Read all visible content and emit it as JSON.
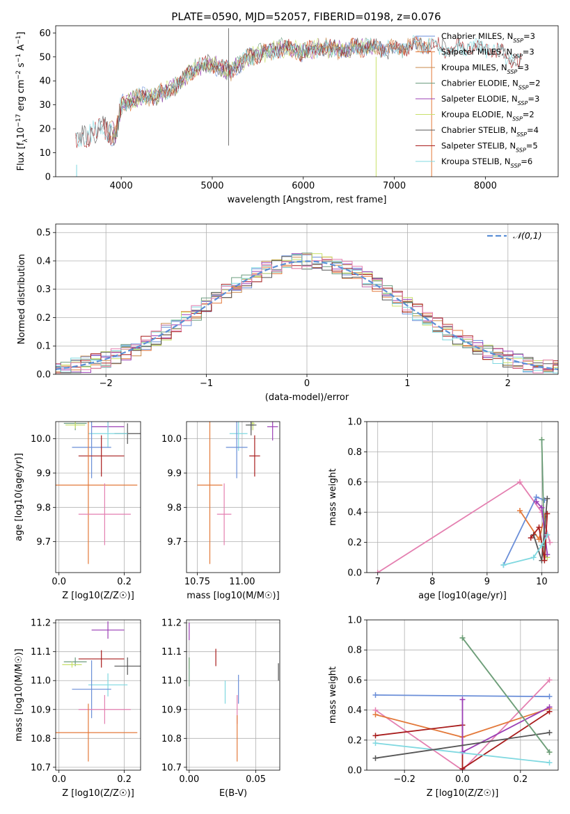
{
  "figure": {
    "title": "PLATE=0590, MJD=52057, FIBERID=0198, z=0.076"
  },
  "chart_data": [
    {
      "id": "spectrum",
      "type": "line",
      "xlabel": "wavelength [Angstrom, rest frame]",
      "ylabel": "Flux [f_λ10^-17 erg cm^-2 s^-1 A^-1]",
      "xlim": [
        3280,
        8800
      ],
      "ylim": [
        0,
        63
      ],
      "xticks": [
        4000,
        5000,
        6000,
        7000,
        8000
      ],
      "yticks": [
        0,
        10,
        20,
        30,
        40,
        50,
        60
      ],
      "grid": false,
      "legend": "upper right",
      "anchors": {
        "x": [
          3500,
          3650,
          3800,
          3950,
          4000,
          4200,
          4400,
          4600,
          4800,
          5000,
          5200,
          5400,
          5600,
          5800,
          6000,
          6200,
          6400,
          6600,
          6800,
          7000,
          7200,
          7400,
          7600,
          7800,
          8000,
          8200,
          8400
        ],
        "y": [
          14,
          18,
          20,
          18,
          30,
          33,
          34,
          38,
          45,
          47,
          44,
          50,
          52,
          54,
          52,
          54,
          53,
          54,
          54,
          53,
          55,
          55,
          53,
          54,
          54,
          51,
          47
        ]
      },
      "series": [
        {
          "name": "Chabrier MILES, N_SSP=3",
          "color": "#6a8ed8",
          "x_start": 3850,
          "x_end": 7400
        },
        {
          "name": "Salpeter MILES, N_SSP=3",
          "color": "#e3793a",
          "x_start": 3850,
          "x_end": 7400
        },
        {
          "name": "Kroupa MILES, N_SSP=3",
          "color": "#c98a4b",
          "x_start": 3850,
          "x_end": 7400
        },
        {
          "name": "Chabrier ELODIE, N_SSP=2",
          "color": "#6b9c7e",
          "x_start": 3900,
          "x_end": 6800
        },
        {
          "name": "Salpeter ELODIE, N_SSP=3",
          "color": "#9b3fb5",
          "x_start": 3900,
          "x_end": 6800
        },
        {
          "name": "Kroupa ELODIE, N_SSP=2",
          "color": "#c8e06a",
          "x_start": 3900,
          "x_end": 6800
        },
        {
          "name": "Chabrier STELIB, N_SSP=4",
          "color": "#555555",
          "x_start": 3500,
          "x_end": 8400
        },
        {
          "name": "Salpeter STELIB, N_SSP=5",
          "color": "#a81c1c",
          "x_start": 3500,
          "x_end": 8400
        },
        {
          "name": "Kroupa STELIB, N_SSP=6",
          "color": "#7fd8e0",
          "x_start": 3500,
          "x_end": 8400
        }
      ]
    },
    {
      "id": "residuals",
      "type": "line",
      "xlabel": "(data-model)/error",
      "ylabel": "Normed distribution",
      "xlim": [
        -2.5,
        2.5
      ],
      "ylim": [
        0,
        0.53
      ],
      "xticks": [
        -2,
        -1,
        0,
        1,
        2
      ],
      "yticks": [
        0.0,
        0.1,
        0.2,
        0.3,
        0.4,
        0.5
      ],
      "grid": true,
      "legend": "upper right",
      "reference": {
        "name": "𝒩(0,1)",
        "color": "#5b8fd6"
      },
      "bin_width": 0.1,
      "series_colors": [
        "#6a8ed8",
        "#e3793a",
        "#c98a4b",
        "#6b9c7e",
        "#9b3fb5",
        "#c8e06a",
        "#555555",
        "#a81c1c",
        "#7fd8e0",
        "#e47fb0"
      ]
    },
    {
      "id": "age-vs-Z",
      "type": "scatter",
      "xlabel": "Z [log10(Z/Z☉)]",
      "ylabel": "age [log10(age/yr)]",
      "xlim": [
        -0.01,
        0.25
      ],
      "ylim": [
        9.61,
        10.05
      ],
      "xticks": [
        0.0,
        0.2
      ],
      "yticks": [
        9.7,
        9.8,
        9.9,
        10.0
      ],
      "grid": true,
      "points": [
        {
          "x": 0.05,
          "y": 10.045,
          "xerr": 0.035,
          "yerr": 0.02,
          "color": "#6b9c7e"
        },
        {
          "x": 0.05,
          "y": 10.04,
          "xerr": 0.03,
          "yerr": 0.01,
          "color": "#c8e06a"
        },
        {
          "x": 0.15,
          "y": 10.035,
          "xerr": 0.05,
          "yerr": 0.015,
          "color": "#9b3fb5"
        },
        {
          "x": 0.21,
          "y": 10.015,
          "xerr": 0.04,
          "yerr": 0.03,
          "color": "#555555"
        },
        {
          "x": 0.15,
          "y": 10.015,
          "xerr": 0.06,
          "yerr": 0.04,
          "color": "#7fd8e0"
        },
        {
          "x": 0.1,
          "y": 9.975,
          "xerr": 0.06,
          "yerr": 0.09,
          "color": "#6a8ed8"
        },
        {
          "x": 0.13,
          "y": 9.95,
          "xerr": 0.07,
          "yerr": 0.06,
          "color": "#a81c1c"
        },
        {
          "x": 0.09,
          "y": 9.865,
          "xerr": 0.15,
          "yerr": 0.23,
          "color": "#e3793a"
        },
        {
          "x": 0.14,
          "y": 9.78,
          "xerr": 0.08,
          "yerr": 0.09,
          "color": "#e47fb0"
        }
      ]
    },
    {
      "id": "age-vs-mass",
      "type": "scatter",
      "xlabel": "mass [log10(M/M☉)]",
      "ylabel": "",
      "xlim": [
        10.69,
        11.21
      ],
      "ylim": [
        9.61,
        10.05
      ],
      "xticks": [
        10.75,
        11.0
      ],
      "tick_labels": [
        "10.75",
        "11.00"
      ],
      "yticks": [
        9.7,
        9.8,
        9.9,
        10.0
      ],
      "grid": true,
      "points": [
        {
          "x": 11.06,
          "y": 10.045,
          "xerr": 0.01,
          "yerr": 0.02,
          "color": "#c8e06a"
        },
        {
          "x": 11.05,
          "y": 10.04,
          "xerr": 0.02,
          "yerr": 0.015,
          "color": "#6b9c7e"
        },
        {
          "x": 11.17,
          "y": 10.035,
          "xerr": 0.03,
          "yerr": 0.04,
          "color": "#9b3fb5"
        },
        {
          "x": 11.05,
          "y": 10.04,
          "xerr": 0.03,
          "yerr": 0.03,
          "color": "#555555"
        },
        {
          "x": 10.98,
          "y": 10.015,
          "xerr": 0.05,
          "yerr": 0.05,
          "color": "#7fd8e0"
        },
        {
          "x": 10.97,
          "y": 9.975,
          "xerr": 0.06,
          "yerr": 0.09,
          "color": "#6a8ed8"
        },
        {
          "x": 11.07,
          "y": 9.95,
          "xerr": 0.03,
          "yerr": 0.06,
          "color": "#a81c1c"
        },
        {
          "x": 10.82,
          "y": 9.865,
          "xerr": 0.07,
          "yerr": 0.23,
          "color": "#e3793a"
        },
        {
          "x": 10.9,
          "y": 9.78,
          "xerr": 0.04,
          "yerr": 0.09,
          "color": "#e47fb0"
        }
      ]
    },
    {
      "id": "weight-vs-age",
      "type": "line",
      "xlabel": "age [log10(age/yr)]",
      "ylabel": "mass weight",
      "xlim": [
        6.8,
        10.3
      ],
      "ylim": [
        0,
        1.0
      ],
      "xticks": [
        7,
        8,
        9,
        10
      ],
      "yticks": [
        0.0,
        0.2,
        0.4,
        0.6,
        0.8,
        1.0
      ],
      "grid": true,
      "series": [
        {
          "color": "#e47fb0",
          "x": [
            7.0,
            9.6,
            10.0,
            10.15
          ],
          "y": [
            0.0,
            0.6,
            0.4,
            0.2
          ]
        },
        {
          "color": "#6a8ed8",
          "x": [
            9.3,
            9.9,
            10.05
          ],
          "y": [
            0.05,
            0.5,
            0.48
          ]
        },
        {
          "color": "#e3793a",
          "x": [
            9.6,
            9.95,
            10.05
          ],
          "y": [
            0.41,
            0.22,
            0.37
          ]
        },
        {
          "color": "#c8e06a",
          "x": [
            10.0,
            10.05,
            10.1
          ],
          "y": [
            0.88,
            0.12,
            0.1
          ]
        },
        {
          "color": "#6b9c7e",
          "x": [
            10.0,
            10.05
          ],
          "y": [
            0.88,
            0.12
          ]
        },
        {
          "color": "#9b3fb5",
          "x": [
            9.9,
            10.0,
            10.1
          ],
          "y": [
            0.47,
            0.43,
            0.12
          ]
        },
        {
          "color": "#555555",
          "x": [
            9.85,
            10.0,
            10.1
          ],
          "y": [
            0.25,
            0.08,
            0.49
          ]
        },
        {
          "color": "#a81c1c",
          "x": [
            9.8,
            9.95,
            10.05,
            10.1
          ],
          "y": [
            0.23,
            0.3,
            0.08,
            0.39
          ]
        },
        {
          "color": "#7fd8e0",
          "x": [
            9.3,
            9.85,
            10.0,
            10.1
          ],
          "y": [
            0.05,
            0.1,
            0.18,
            0.25
          ]
        }
      ]
    },
    {
      "id": "mass-vs-Z",
      "type": "scatter",
      "xlabel": "Z [log10(Z/Z☉)]",
      "ylabel": "mass [log10(M/M☉)]",
      "xlim": [
        -0.01,
        0.25
      ],
      "ylim": [
        10.69,
        11.21
      ],
      "xticks": [
        0.0,
        0.2
      ],
      "yticks": [
        10.7,
        10.8,
        10.9,
        11.0,
        11.1,
        11.2
      ],
      "grid": true,
      "points": [
        {
          "x": 0.15,
          "y": 11.175,
          "xerr": 0.05,
          "yerr": 0.03,
          "color": "#9b3fb5"
        },
        {
          "x": 0.13,
          "y": 11.075,
          "xerr": 0.07,
          "yerr": 0.03,
          "color": "#a81c1c"
        },
        {
          "x": 0.05,
          "y": 11.065,
          "xerr": 0.035,
          "yerr": 0.015,
          "color": "#6b9c7e"
        },
        {
          "x": 0.04,
          "y": 11.055,
          "xerr": 0.03,
          "yerr": 0.01,
          "color": "#c8e06a"
        },
        {
          "x": 0.21,
          "y": 11.05,
          "xerr": 0.04,
          "yerr": 0.03,
          "color": "#555555"
        },
        {
          "x": 0.15,
          "y": 10.985,
          "xerr": 0.06,
          "yerr": 0.04,
          "color": "#7fd8e0"
        },
        {
          "x": 0.1,
          "y": 10.97,
          "xerr": 0.06,
          "yerr": 0.1,
          "color": "#6a8ed8"
        },
        {
          "x": 0.14,
          "y": 10.9,
          "xerr": 0.08,
          "yerr": 0.05,
          "color": "#e47fb0"
        },
        {
          "x": 0.09,
          "y": 10.82,
          "xerr": 0.15,
          "yerr": 0.1,
          "color": "#e3793a"
        }
      ]
    },
    {
      "id": "mass-vs-EBV",
      "type": "scatter",
      "xlabel": "E(B-V)",
      "ylabel": "",
      "xlim": [
        -0.002,
        0.068
      ],
      "ylim": [
        10.69,
        11.21
      ],
      "xticks": [
        0.0,
        0.05
      ],
      "tick_labels": [
        "0.00",
        "0.05"
      ],
      "yticks": [
        10.7,
        10.8,
        10.9,
        11.0,
        11.1,
        11.2
      ],
      "grid": true,
      "points": [
        {
          "x": 0.0,
          "y": 11.17,
          "xerr": 0,
          "yerr": 0.03,
          "color": "#9b3fb5"
        },
        {
          "x": 0.02,
          "y": 11.08,
          "xerr": 0,
          "yerr": 0.03,
          "color": "#a81c1c"
        },
        {
          "x": 0.0,
          "y": 11.06,
          "xerr": 0,
          "yerr": 0.02,
          "color": "#c8e06a"
        },
        {
          "x": 0.0,
          "y": 11.03,
          "xerr": 0,
          "yerr": 0.05,
          "color": "#6b9c7e"
        },
        {
          "x": 0.067,
          "y": 11.03,
          "xerr": 0,
          "yerr": 0.03,
          "color": "#555555"
        },
        {
          "x": 0.027,
          "y": 10.96,
          "xerr": 0,
          "yerr": 0.04,
          "color": "#7fd8e0"
        },
        {
          "x": 0.037,
          "y": 10.97,
          "xerr": 0,
          "yerr": 0.05,
          "color": "#6a8ed8"
        },
        {
          "x": 0.036,
          "y": 10.9,
          "xerr": 0,
          "yerr": 0.05,
          "color": "#e47fb0"
        },
        {
          "x": 0.036,
          "y": 10.8,
          "xerr": 0,
          "yerr": 0.08,
          "color": "#e3793a"
        }
      ]
    },
    {
      "id": "weight-vs-Z",
      "type": "line",
      "xlabel": "Z [log10(Z/Z☉)]",
      "ylabel": "mass weight",
      "xlim": [
        -0.33,
        0.33
      ],
      "ylim": [
        0,
        1.0
      ],
      "xticks": [
        -0.2,
        0.0,
        0.2
      ],
      "yticks": [
        0.0,
        0.2,
        0.4,
        0.6,
        0.8,
        1.0
      ],
      "grid": true,
      "series": [
        {
          "color": "#6a8ed8",
          "x": [
            -0.3,
            0.3
          ],
          "y": [
            0.5,
            0.49
          ]
        },
        {
          "color": "#e47fb0",
          "x": [
            -0.3,
            0.0,
            0.3
          ],
          "y": [
            0.4,
            0.0,
            0.6
          ]
        },
        {
          "color": "#e3793a",
          "x": [
            -0.3,
            0.0,
            0.3
          ],
          "y": [
            0.37,
            0.22,
            0.41
          ]
        },
        {
          "color": "#a81c1c",
          "x": [
            -0.3,
            0.0,
            0.0,
            0.3
          ],
          "y": [
            0.23,
            0.3,
            0.01,
            0.39
          ]
        },
        {
          "color": "#9b3fb5",
          "x": [
            0.0,
            0.0,
            0.3
          ],
          "y": [
            0.47,
            0.12,
            0.42
          ]
        },
        {
          "color": "#7fd8e0",
          "x": [
            -0.3,
            0.3
          ],
          "y": [
            0.18,
            0.05
          ]
        },
        {
          "color": "#555555",
          "x": [
            -0.3,
            0.3
          ],
          "y": [
            0.08,
            0.25
          ]
        },
        {
          "color": "#c8e06a",
          "x": [
            0.0,
            0.3
          ],
          "y": [
            0.88,
            0.12
          ]
        },
        {
          "color": "#6b9c7e",
          "x": [
            0.0,
            0.3
          ],
          "y": [
            0.88,
            0.12
          ]
        }
      ]
    }
  ]
}
